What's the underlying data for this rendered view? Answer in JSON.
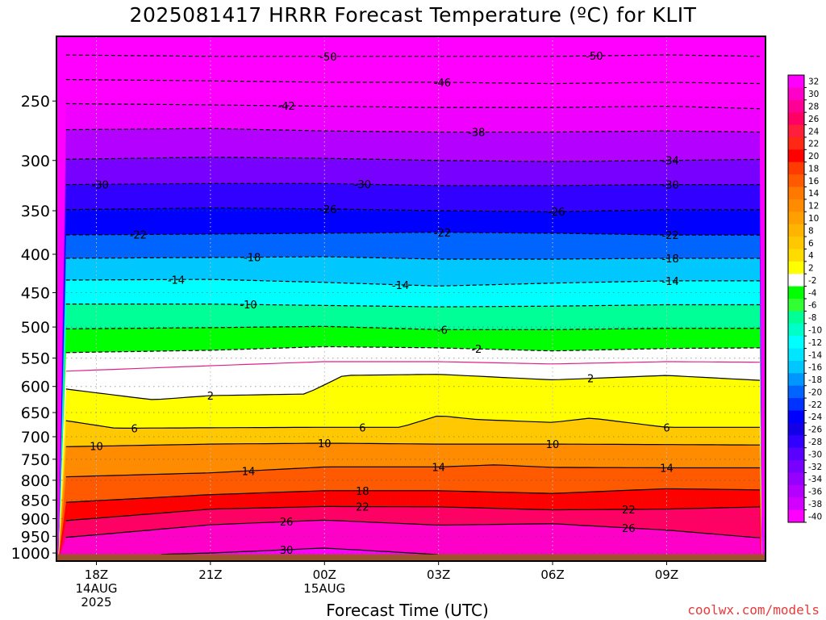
{
  "title": "2025081417 HRRR Forecast Temperature (ºC) for KLIT",
  "credit": "coolwx.com/models",
  "chart_data": {
    "type": "heatmap",
    "title": "2025081417 HRRR Forecast Temperature (ºC) for KLIT",
    "xlabel": "Forecast Time (UTC)",
    "ylabel": "",
    "x_range_hours_from_18Z": [
      -1.05,
      17.6
    ],
    "y_scale": "log-pressure",
    "y_range_hPa": [
      1025,
      205
    ],
    "x_ticks": [
      {
        "hour": 0,
        "lines": [
          "18Z",
          "14AUG",
          "2025"
        ]
      },
      {
        "hour": 3,
        "lines": [
          "21Z"
        ]
      },
      {
        "hour": 6,
        "lines": [
          "00Z",
          "15AUG"
        ]
      },
      {
        "hour": 9,
        "lines": [
          "03Z"
        ]
      },
      {
        "hour": 12,
        "lines": [
          "06Z"
        ]
      },
      {
        "hour": 15,
        "lines": [
          "09Z"
        ]
      }
    ],
    "y_ticks": [
      250,
      300,
      350,
      400,
      450,
      500,
      550,
      600,
      650,
      700,
      750,
      800,
      850,
      900,
      950,
      1000
    ],
    "colorbar": {
      "labels": [
        "32",
        "30",
        "28",
        "26",
        "24",
        "22",
        "20",
        "18",
        "16",
        "14",
        "12",
        "10",
        "8",
        "6",
        "4",
        "2",
        "-2",
        "-4",
        "-6",
        "-8",
        "-10",
        "-12",
        "-14",
        "-16",
        "-18",
        "-20",
        "-22",
        "-24",
        "-26",
        "-28",
        "-30",
        "-32",
        "-34",
        "-36",
        "-38",
        "-40"
      ],
      "colors": [
        "#ff00ff",
        "#ff00c8",
        "#ff0096",
        "#ff0064",
        "#ff1e3c",
        "#ff2814",
        "#ff0000",
        "#ff3c00",
        "#ff5a00",
        "#ff7800",
        "#ff8c00",
        "#ffa000",
        "#ffb400",
        "#ffc800",
        "#ffdc00",
        "#ffff00",
        "#ffffff",
        "#00ff00",
        "#32ff32",
        "#00ff96",
        "#00ffc8",
        "#00ffff",
        "#00e6ff",
        "#00c8ff",
        "#0096ff",
        "#0064ff",
        "#0032ff",
        "#0000ff",
        "#1400e6",
        "#3200ff",
        "#5a00ff",
        "#7800ff",
        "#9600ff",
        "#b400ff",
        "#d200ff",
        "#ff00ff"
      ]
    },
    "surface_color": "#a0522d",
    "contours": [
      {
        "temp": -50,
        "dashed": true,
        "hours": [
          -1,
          3,
          6,
          9,
          12,
          15,
          17.5
        ],
        "pressures": [
          217,
          218,
          218,
          218,
          218,
          217,
          218
        ],
        "labels": [
          {
            "hour": 6.1
          },
          {
            "hour": 13.1
          }
        ]
      },
      {
        "temp": -46,
        "dashed": true,
        "hours": [
          -1,
          3,
          6,
          9,
          12,
          15,
          17.5
        ],
        "pressures": [
          234,
          235,
          236,
          236,
          237,
          236,
          237
        ],
        "labels": [
          {
            "hour": 9.1
          }
        ]
      },
      {
        "temp": -42,
        "dashed": true,
        "hours": [
          -1,
          3,
          6,
          9,
          12,
          15,
          17.5
        ],
        "pressures": [
          252,
          253,
          254,
          255,
          255,
          254,
          256
        ],
        "labels": [
          {
            "hour": 5.0
          }
        ]
      },
      {
        "temp": -38,
        "dashed": true,
        "hours": [
          -1,
          3,
          6,
          9,
          12,
          15,
          17.5
        ],
        "pressures": [
          273,
          272,
          274,
          275,
          275,
          274,
          275
        ],
        "labels": [
          {
            "hour": 10.0
          }
        ]
      },
      {
        "temp": -34,
        "dashed": true,
        "hours": [
          -1,
          3,
          6,
          9,
          12,
          15,
          17.5
        ],
        "pressures": [
          299,
          297,
          298,
          300,
          301,
          300,
          299
        ],
        "labels": [
          {
            "hour": 15.1
          }
        ]
      },
      {
        "temp": -30,
        "dashed": true,
        "hours": [
          -1,
          3,
          6,
          9,
          12,
          15,
          17.5
        ],
        "pressures": [
          323,
          322,
          322,
          324,
          324,
          323,
          323
        ],
        "labels": [
          {
            "hour": 0.1
          },
          {
            "hour": 7.0
          },
          {
            "hour": 15.1
          }
        ]
      },
      {
        "temp": -26,
        "dashed": true,
        "hours": [
          -1,
          3,
          6,
          9,
          12,
          15,
          17.5
        ],
        "pressures": [
          349,
          347,
          348,
          350,
          351,
          349,
          349
        ],
        "labels": [
          {
            "hour": 6.1
          },
          {
            "hour": 12.1
          }
        ]
      },
      {
        "temp": -22,
        "dashed": true,
        "hours": [
          -1,
          3,
          6,
          9,
          12,
          15,
          17.5
        ],
        "pressures": [
          377,
          376,
          375,
          374,
          375,
          377,
          377
        ],
        "labels": [
          {
            "hour": 1.1
          },
          {
            "hour": 9.1
          },
          {
            "hour": 15.1
          }
        ]
      },
      {
        "temp": -18,
        "dashed": true,
        "hours": [
          -1,
          3,
          6,
          9,
          12,
          15,
          17.5
        ],
        "pressures": [
          405,
          404,
          403,
          406,
          406,
          405,
          405
        ],
        "labels": [
          {
            "hour": 4.1
          },
          {
            "hour": 15.1
          }
        ]
      },
      {
        "temp": -14,
        "dashed": true,
        "hours": [
          -1,
          3,
          6,
          9,
          12,
          15,
          17.5
        ],
        "pressures": [
          433,
          432,
          436,
          441,
          437,
          434,
          434
        ],
        "labels": [
          {
            "hour": 2.1
          },
          {
            "hour": 8.0
          },
          {
            "hour": 15.1
          }
        ]
      },
      {
        "temp": -10,
        "dashed": true,
        "hours": [
          -1,
          3,
          6,
          9,
          12,
          15,
          17.5
        ],
        "pressures": [
          466,
          466,
          468,
          470,
          469,
          467,
          467
        ],
        "labels": [
          {
            "hour": 4.0
          }
        ]
      },
      {
        "temp": -6,
        "dashed": true,
        "hours": [
          -1,
          3,
          6,
          9,
          12,
          15,
          17.5
        ],
        "pressures": [
          503,
          501,
          499,
          504,
          504,
          502,
          502
        ],
        "labels": [
          {
            "hour": 9.1
          }
        ]
      },
      {
        "temp": -2,
        "dashed": true,
        "hours": [
          -1,
          3,
          6,
          9,
          12,
          15,
          17.5
        ],
        "pressures": [
          541,
          537,
          531,
          533,
          538,
          534,
          533
        ],
        "labels": [
          {
            "hour": 10.0
          }
        ]
      },
      {
        "temp": 0,
        "dashed": false,
        "color": "#e0208a",
        "hours": [
          -1,
          3,
          6,
          9,
          12,
          15,
          17.5
        ],
        "pressures": [
          573,
          563,
          556,
          556,
          560,
          556,
          557
        ],
        "labels": []
      },
      {
        "temp": 2,
        "dashed": false,
        "hours": [
          -1,
          1.5,
          3,
          5.5,
          6.5,
          9,
          12,
          15,
          17.5
        ],
        "pressures": [
          603,
          625,
          617,
          614,
          580,
          578,
          588,
          580,
          589
        ],
        "labels": [
          {
            "hour": 3.0
          },
          {
            "hour": 13.0
          }
        ]
      },
      {
        "temp": 6,
        "dashed": false,
        "hours": [
          -1,
          0.5,
          3,
          6,
          8,
          9,
          10,
          12,
          13,
          15,
          17.5
        ],
        "pressures": [
          664,
          682,
          681,
          680,
          680,
          656,
          664,
          670,
          661,
          680,
          680
        ],
        "labels": [
          {
            "hour": 1.0
          },
          {
            "hour": 7.0
          },
          {
            "hour": 15.0
          }
        ]
      },
      {
        "temp": 10,
        "dashed": false,
        "hours": [
          -1,
          3,
          6,
          9,
          12,
          15,
          17.5
        ],
        "pressures": [
          722,
          716,
          714,
          716,
          716,
          717,
          718
        ],
        "labels": [
          {
            "hour": 0.0
          },
          {
            "hour": 6.0
          },
          {
            "hour": 12.0
          }
        ]
      },
      {
        "temp": 14,
        "dashed": false,
        "hours": [
          -1,
          3,
          6,
          9,
          10.5,
          12,
          15,
          17.5
        ],
        "pressures": [
          792,
          782,
          768,
          768,
          763,
          769,
          770,
          770
        ],
        "labels": [
          {
            "hour": 4.0
          },
          {
            "hour": 9.0
          },
          {
            "hour": 15.0
          }
        ]
      },
      {
        "temp": 18,
        "dashed": false,
        "hours": [
          -1,
          3,
          6,
          9,
          12,
          15,
          17.5
        ],
        "pressures": [
          857,
          836,
          826,
          826,
          833,
          821,
          824
        ],
        "labels": [
          {
            "hour": 7.0
          }
        ]
      },
      {
        "temp": 22,
        "dashed": false,
        "hours": [
          -1,
          3,
          6,
          9,
          12,
          15,
          17.5
        ],
        "pressures": [
          907,
          874,
          867,
          868,
          876,
          874,
          868
        ],
        "labels": [
          {
            "hour": 7.0
          },
          {
            "hour": 14.0
          }
        ]
      },
      {
        "temp": 26,
        "dashed": false,
        "hours": [
          -1,
          3,
          6,
          9,
          12,
          15,
          17.5
        ],
        "pressures": [
          955,
          917,
          904,
          918,
          914,
          932,
          955
        ],
        "labels": [
          {
            "hour": 5.0
          },
          {
            "hour": 14.0
          }
        ]
      },
      {
        "temp": 30,
        "dashed": false,
        "hours": [
          1.5,
          3,
          6,
          8,
          9,
          9.5
        ],
        "pressures": [
          1005,
          1000,
          985,
          998,
          1005,
          1013
        ],
        "labels": [
          {
            "hour": 5.0
          }
        ]
      }
    ],
    "color_bands": [
      {
        "temp": -46,
        "color": "#ff00ff"
      },
      {
        "temp": -42,
        "color": "#ff00ff"
      },
      {
        "temp": -38,
        "color": "#f000ff"
      },
      {
        "temp": -34,
        "color": "#b400ff"
      },
      {
        "temp": -30,
        "color": "#7800ff"
      },
      {
        "temp": -26,
        "color": "#3200ff"
      },
      {
        "temp": -22,
        "color": "#0000ff"
      },
      {
        "temp": -18,
        "color": "#0064ff"
      },
      {
        "temp": -14,
        "color": "#00c8ff"
      },
      {
        "temp": -10,
        "color": "#00ffff"
      },
      {
        "temp": -6,
        "color": "#00ff96"
      },
      {
        "temp": -2,
        "color": "#00ff00"
      },
      {
        "temp": 0,
        "color": "#ffffff"
      },
      {
        "temp": 2,
        "color": "#ffffff"
      },
      {
        "temp": 6,
        "color": "#ffff00"
      },
      {
        "temp": 10,
        "color": "#ffc800"
      },
      {
        "temp": 14,
        "color": "#ff8c00"
      },
      {
        "temp": 18,
        "color": "#ff5a00"
      },
      {
        "temp": 22,
        "color": "#ff0000"
      },
      {
        "temp": 26,
        "color": "#ff0064"
      },
      {
        "temp": 30,
        "color": "#ff00c8"
      },
      {
        "temp": 34,
        "color": "#ff00ff"
      }
    ]
  }
}
